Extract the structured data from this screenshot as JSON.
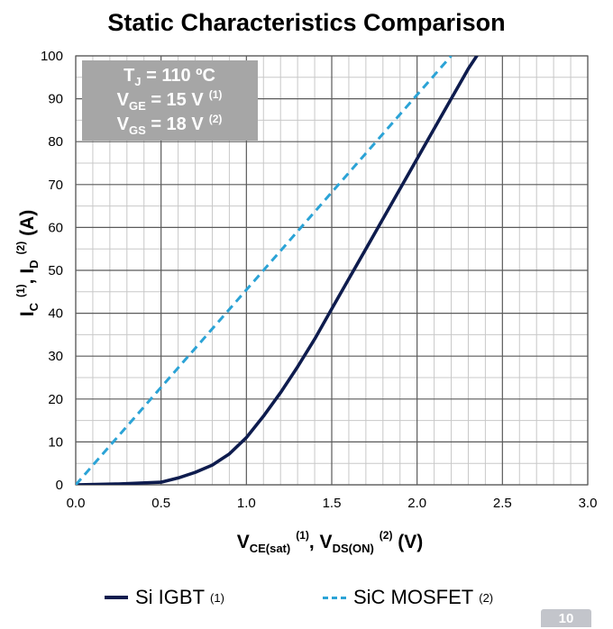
{
  "chart_data": {
    "type": "line",
    "title": "Static Characteristics Comparison",
    "xlabel": {
      "main": "V",
      "sub1": "CE(sat)",
      "sup1": "(1)",
      "sep": ", V",
      "sub2": "DS(ON)",
      "sup2": "(2)",
      "unit": " (V)"
    },
    "ylabel": {
      "i1": "I",
      "sub1": "C",
      "sup1": "(1)",
      "sep": ", I",
      "sub2": "D",
      "sup2": "(2)",
      "unit": " (A)"
    },
    "xlim": [
      0,
      3.0
    ],
    "ylim": [
      0,
      100
    ],
    "xticks": [
      "0.0",
      "0.5",
      "1.0",
      "1.5",
      "2.0",
      "2.5",
      "3.0"
    ],
    "yticks": [
      "0",
      "10",
      "20",
      "30",
      "40",
      "50",
      "60",
      "70",
      "80",
      "90",
      "100"
    ],
    "grid": true,
    "legend_position": "bottom",
    "series": [
      {
        "name": "Si IGBT",
        "marker": "(1)",
        "color": "#0e1c4e",
        "style": "solid",
        "points": [
          [
            0,
            0
          ],
          [
            0.25,
            0.2
          ],
          [
            0.5,
            0.6
          ],
          [
            0.6,
            1.6
          ],
          [
            0.7,
            2.9
          ],
          [
            0.8,
            4.6
          ],
          [
            0.9,
            7.2
          ],
          [
            1.0,
            11.0
          ],
          [
            1.1,
            16.0
          ],
          [
            1.2,
            21.5
          ],
          [
            1.3,
            27.5
          ],
          [
            1.4,
            34.0
          ],
          [
            1.5,
            41.0
          ],
          [
            1.6,
            48.0
          ],
          [
            1.7,
            55.0
          ],
          [
            1.8,
            62.0
          ],
          [
            1.9,
            69.0
          ],
          [
            2.0,
            76.0
          ],
          [
            2.1,
            83.0
          ],
          [
            2.2,
            90.0
          ],
          [
            2.3,
            97.0
          ],
          [
            2.35,
            100.0
          ]
        ]
      },
      {
        "name": "SiC MOSFET",
        "marker": "(2)",
        "color": "#2ba3d6",
        "style": "dashed",
        "points": [
          [
            0,
            0
          ],
          [
            2.2,
            100
          ]
        ]
      }
    ]
  },
  "annotation": {
    "line1": {
      "main": "T",
      "sub": "J",
      "rest": " = 110 ºC"
    },
    "line2": {
      "main": "V",
      "sub": "GE",
      "rest": " = 15 V",
      "sup": "(1)"
    },
    "line3": {
      "main": "V",
      "sub": "GS",
      "rest": " = 18 V",
      "sup": "(2)"
    },
    "bg_color": "#a6a6a6"
  },
  "watermark": "10"
}
